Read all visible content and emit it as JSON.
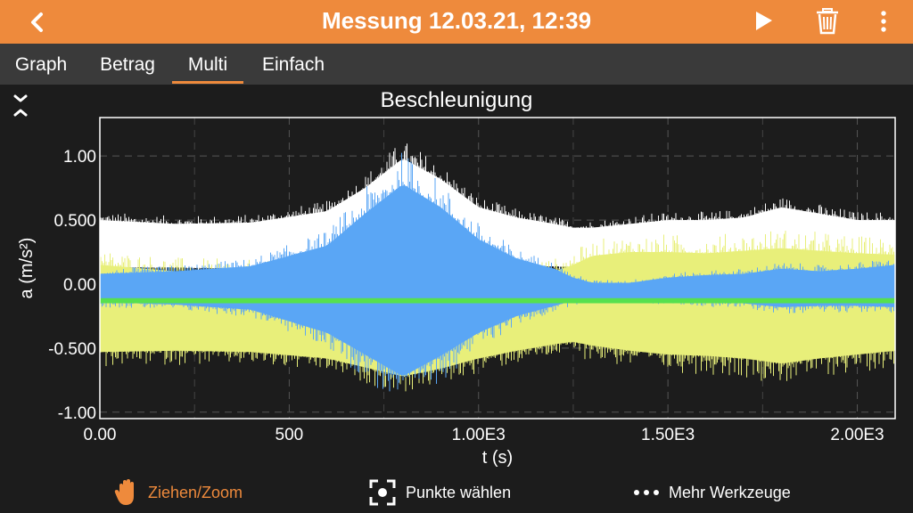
{
  "header": {
    "title": "Messung 12.03.21, 12:39"
  },
  "tabs": [
    {
      "label": "Graph",
      "active": false
    },
    {
      "label": "Betrag",
      "active": false
    },
    {
      "label": "Multi",
      "active": true
    },
    {
      "label": "Einfach",
      "active": false
    }
  ],
  "chart_data": {
    "type": "line",
    "title": "Beschleunigung",
    "xlabel": "t (s)",
    "ylabel": "a (m/s²)",
    "xlim": [
      0,
      2100
    ],
    "ylim": [
      -1.05,
      1.3
    ],
    "x_ticks": [
      0,
      500,
      1000,
      1500,
      2000
    ],
    "x_tick_labels": [
      "0.00",
      "500",
      "1.00E3",
      "1.50E3",
      "2.00E3"
    ],
    "y_ticks": [
      1.0,
      0.5,
      0.0,
      -0.5,
      -1.0
    ],
    "y_tick_labels": [
      "1.00",
      "0.500",
      "0.00",
      "-0.500",
      "-1.00"
    ],
    "grid": true,
    "series": [
      {
        "color": "#ffffff",
        "x": [
          0,
          200,
          400,
          600,
          700,
          800,
          900,
          1000,
          1100,
          1200,
          1250,
          1300,
          1400,
          1500,
          1600,
          1700,
          1800,
          1900,
          2000,
          2100
        ],
        "upper": [
          0.5,
          0.47,
          0.48,
          0.57,
          0.75,
          0.98,
          0.82,
          0.6,
          0.52,
          0.47,
          0.44,
          0.44,
          0.47,
          0.5,
          0.5,
          0.52,
          0.6,
          0.55,
          0.5,
          0.5
        ],
        "lower": [
          0.13,
          0.13,
          0.12,
          0.12,
          0.12,
          0.12,
          0.12,
          0.13,
          0.13,
          0.14,
          0.13,
          0.11,
          0.11,
          0.12,
          0.13,
          0.12,
          0.12,
          0.12,
          0.12,
          0.12
        ]
      },
      {
        "color": "#e8ef7a",
        "x": [
          0,
          200,
          400,
          600,
          700,
          800,
          900,
          1000,
          1100,
          1200,
          1250,
          1300,
          1400,
          1500,
          1600,
          1700,
          1800,
          1900,
          2000,
          2100
        ],
        "upper": [
          0.15,
          0.1,
          0.08,
          0.05,
          0.04,
          0.04,
          0.05,
          0.06,
          0.08,
          0.1,
          0.15,
          0.22,
          0.25,
          0.25,
          0.24,
          0.26,
          0.28,
          0.26,
          0.24,
          0.23
        ],
        "lower": [
          -0.53,
          -0.52,
          -0.53,
          -0.58,
          -0.65,
          -0.72,
          -0.66,
          -0.58,
          -0.52,
          -0.47,
          -0.45,
          -0.48,
          -0.52,
          -0.55,
          -0.56,
          -0.58,
          -0.62,
          -0.58,
          -0.55,
          -0.52
        ]
      },
      {
        "color": "#5aa6f5",
        "x": [
          0,
          200,
          400,
          600,
          700,
          800,
          900,
          1000,
          1100,
          1200,
          1250,
          1300,
          1400,
          1500,
          1600,
          1700,
          1800,
          1900,
          2000,
          2100
        ],
        "upper": [
          0.08,
          0.1,
          0.14,
          0.3,
          0.55,
          0.78,
          0.6,
          0.35,
          0.2,
          0.12,
          0.05,
          0.01,
          0.01,
          0.05,
          0.07,
          0.08,
          0.12,
          0.1,
          0.12,
          0.15
        ],
        "lower": [
          -0.14,
          -0.16,
          -0.2,
          -0.38,
          -0.55,
          -0.72,
          -0.56,
          -0.38,
          -0.25,
          -0.17,
          -0.13,
          -0.12,
          -0.12,
          -0.13,
          -0.14,
          -0.15,
          -0.18,
          -0.17,
          -0.17,
          -0.18
        ]
      },
      {
        "color": "#56e04f",
        "x": [
          0,
          2100
        ],
        "upper": [
          -0.11,
          -0.11
        ],
        "lower": [
          -0.15,
          -0.15
        ]
      }
    ]
  },
  "toolbar": {
    "pan_zoom": "Ziehen/Zoom",
    "pick_points": "Punkte wählen",
    "more_tools": "Mehr Werkzeuge"
  },
  "colors": {
    "accent": "#ee8a3c",
    "background": "#1c1c1c",
    "tabbar": "#3a3a3a"
  }
}
